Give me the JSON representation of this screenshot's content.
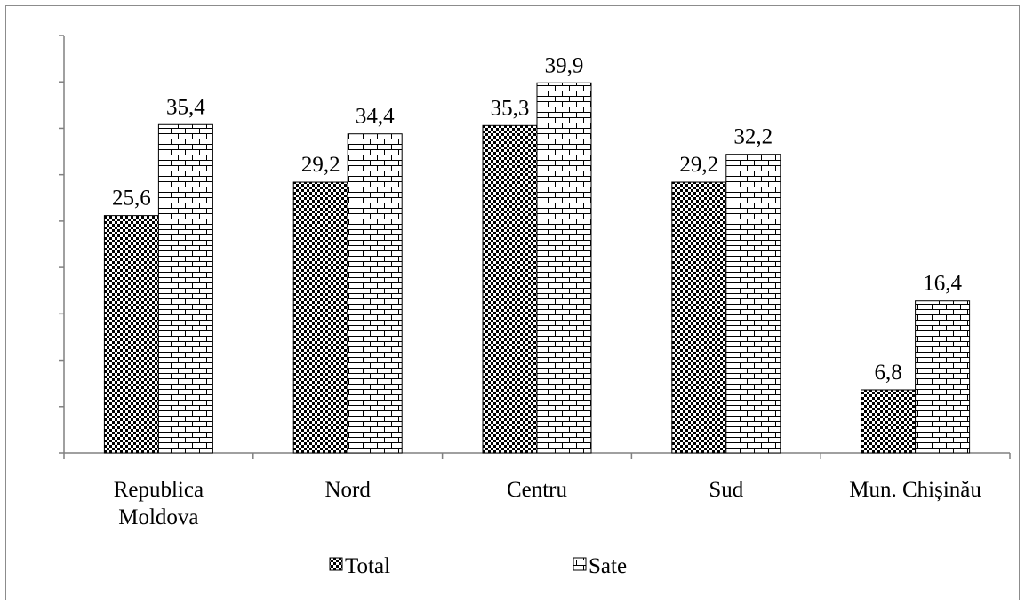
{
  "chart_data": {
    "type": "bar",
    "categories": [
      "Republica Moldova",
      "Nord",
      "Centru",
      "Sud",
      "Mun. Chișinău"
    ],
    "category_lines": [
      [
        "Republica",
        "Moldova"
      ],
      [
        "Nord"
      ],
      [
        "Centru"
      ],
      [
        "Sud"
      ],
      [
        "Mun. Chișinău"
      ]
    ],
    "series": [
      {
        "name": "Total",
        "values": [
          25.6,
          29.2,
          35.3,
          29.2,
          6.8
        ],
        "labels": [
          "25,6",
          "29,2",
          "35,3",
          "29,2",
          "6,8"
        ],
        "pattern": "checker"
      },
      {
        "name": "Sate",
        "values": [
          35.4,
          34.4,
          39.9,
          32.2,
          16.4
        ],
        "labels": [
          "35,4",
          "34,4",
          "39,9",
          "32,2",
          "16,4"
        ],
        "pattern": "brick"
      }
    ],
    "title": "",
    "xlabel": "",
    "ylabel": "",
    "ylim": [
      0,
      45
    ],
    "y_tick_step": 5,
    "y_tick_labels_shown": false,
    "grid": false,
    "legend_position": "bottom"
  }
}
